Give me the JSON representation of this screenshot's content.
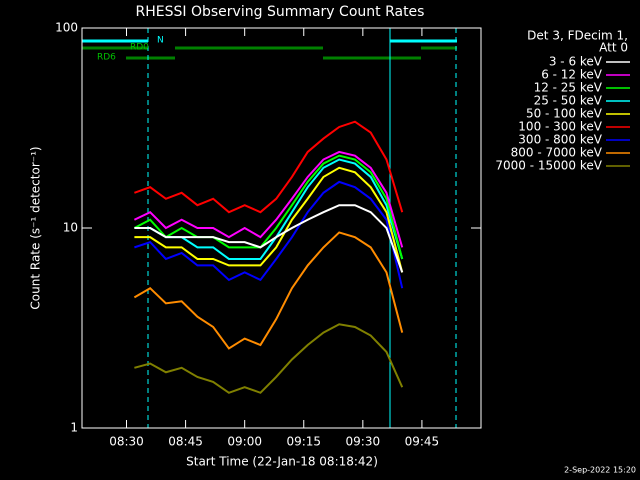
{
  "chart_data": {
    "type": "line",
    "title": "RHESSI Observing Summary Count Rates",
    "x_label": "Start Time (22-Jan-18 08:18:42)",
    "y_label": "Count Rate (s⁻¹ detector⁻¹)",
    "legend_title": [
      "Det 3, FDecim 1,",
      "Att 0"
    ],
    "footer": "2-Sep-2022 15:20",
    "annotations": [
      "N",
      "RD0",
      "RD6"
    ],
    "log_y": true,
    "xlim": [
      498.7,
      600
    ],
    "xticks": [
      {
        "value": 510,
        "label": "08:30"
      },
      {
        "value": 525,
        "label": "08:45"
      },
      {
        "value": 540,
        "label": "09:00"
      },
      {
        "value": 555,
        "label": "09:15"
      },
      {
        "value": 570,
        "label": "09:30"
      },
      {
        "value": 585,
        "label": "09:45"
      }
    ],
    "ylim": [
      1,
      100
    ],
    "yticks": [
      1,
      10,
      100
    ],
    "x": [
      512,
      516,
      520,
      524,
      528,
      532,
      536,
      540,
      544,
      548,
      552,
      556,
      560,
      564,
      568,
      572,
      576,
      580
    ],
    "series": [
      {
        "name": "3 - 6 keV",
        "color": "#ffffff",
        "values": [
          10,
          10,
          9,
          9,
          9,
          9,
          8.5,
          8.5,
          8,
          9,
          10,
          11,
          12,
          13,
          13,
          12,
          10,
          6
        ]
      },
      {
        "name": "6 - 12 keV",
        "color": "#ff00ff",
        "values": [
          11,
          12,
          10,
          11,
          10,
          10,
          9,
          10,
          9,
          11,
          14,
          18,
          22,
          24,
          23,
          20,
          15,
          8
        ]
      },
      {
        "name": "12 - 25 keV",
        "color": "#00ff00",
        "values": [
          10,
          11,
          9,
          10,
          9,
          9,
          8,
          8,
          8,
          10,
          13,
          17,
          21,
          23,
          22,
          19,
          14,
          7
        ]
      },
      {
        "name": "25 - 50 keV",
        "color": "#00ffff",
        "values": [
          10,
          10,
          9,
          9,
          8,
          8,
          7,
          7,
          7,
          9,
          12,
          16,
          20,
          22,
          21,
          18,
          13,
          7
        ]
      },
      {
        "name": "50 - 100 keV",
        "color": "#ffff00",
        "values": [
          9,
          9,
          8,
          8,
          7,
          7,
          6.5,
          6.5,
          6.5,
          8,
          11,
          14,
          18,
          20,
          19,
          16,
          12,
          6
        ]
      },
      {
        "name": "100 - 300 keV",
        "color": "#ff0000",
        "values": [
          15,
          16,
          14,
          15,
          13,
          14,
          12,
          13,
          12,
          14,
          18,
          24,
          28,
          32,
          34,
          30,
          22,
          12
        ]
      },
      {
        "name": "300 - 800 keV",
        "color": "#0000ff",
        "values": [
          8,
          8.5,
          7,
          7.5,
          6.5,
          6.5,
          5.5,
          6,
          5.5,
          7,
          9,
          12,
          15,
          17,
          16,
          14,
          11,
          5
        ]
      },
      {
        "name": "800 - 7000 keV",
        "color": "#ff8c00",
        "values": [
          4.5,
          5,
          4.2,
          4.3,
          3.6,
          3.2,
          2.5,
          2.8,
          2.6,
          3.5,
          5,
          6.5,
          8,
          9.5,
          9,
          8,
          6,
          3
        ]
      },
      {
        "name": "7000 - 15000 keV",
        "color": "#808000",
        "values": [
          2,
          2.1,
          1.9,
          2,
          1.8,
          1.7,
          1.5,
          1.6,
          1.5,
          1.8,
          2.2,
          2.6,
          3,
          3.3,
          3.2,
          2.9,
          2.4,
          1.6
        ]
      }
    ]
  }
}
